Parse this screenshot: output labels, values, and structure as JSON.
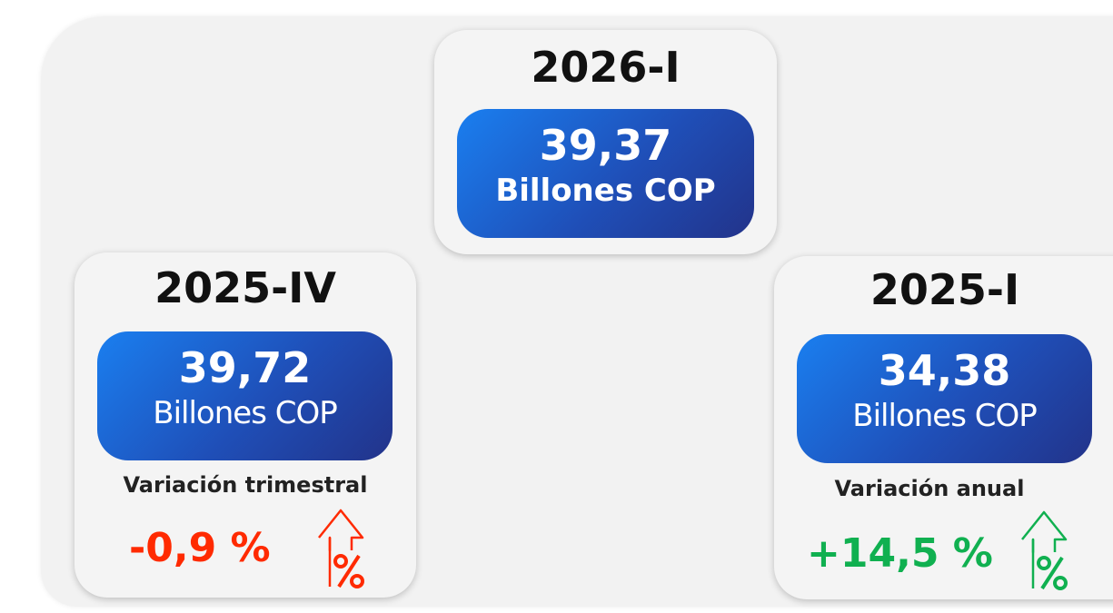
{
  "cards": [
    {
      "period": "2026-I",
      "value": "39,37",
      "unit": "Billones COP"
    },
    {
      "period": "2025-IV",
      "value": "39,72",
      "unit": "Billones COP",
      "variation_label": "Variación trimestral",
      "variation": "-0,9 %"
    },
    {
      "period": "2025-I",
      "value": "34,38",
      "unit": "Billones COP",
      "variation_label": "Variación anual",
      "variation": "+14,5 %"
    }
  ]
}
